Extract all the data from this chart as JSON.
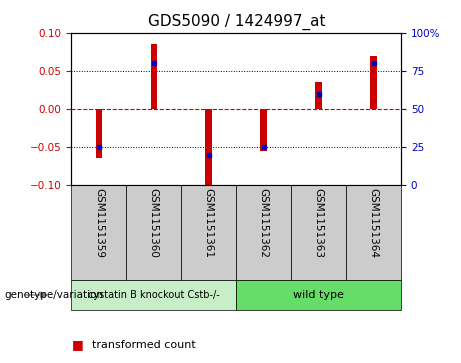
{
  "title": "GDS5090 / 1424997_at",
  "samples": [
    "GSM1151359",
    "GSM1151360",
    "GSM1151361",
    "GSM1151362",
    "GSM1151363",
    "GSM1151364"
  ],
  "red_values": [
    -0.065,
    0.085,
    -0.1,
    -0.055,
    0.035,
    0.07
  ],
  "blue_values": [
    25,
    80,
    20,
    25,
    60,
    80
  ],
  "ylim_left": [
    -0.1,
    0.1
  ],
  "ylim_right": [
    0,
    100
  ],
  "yticks_left": [
    -0.1,
    -0.05,
    0,
    0.05,
    0.1
  ],
  "yticks_right": [
    0,
    25,
    50,
    75,
    100
  ],
  "bar_color": "#cc0000",
  "dot_color": "#0000cc",
  "bar_width": 0.12,
  "title_fontsize": 11,
  "tick_fontsize": 7.5,
  "legend_fontsize": 8,
  "zero_line_color": "#cc0000",
  "grid_color": "#000000",
  "plot_bg_color": "#ffffff",
  "sample_bg_color": "#cccccc",
  "knockout_bg_color": "#c8eec8",
  "wildtype_bg_color": "#66dd66",
  "knockout_label": "cystatin B knockout Cstb-/-",
  "wildtype_label": "wild type",
  "genotype_label": "genotype/variation"
}
